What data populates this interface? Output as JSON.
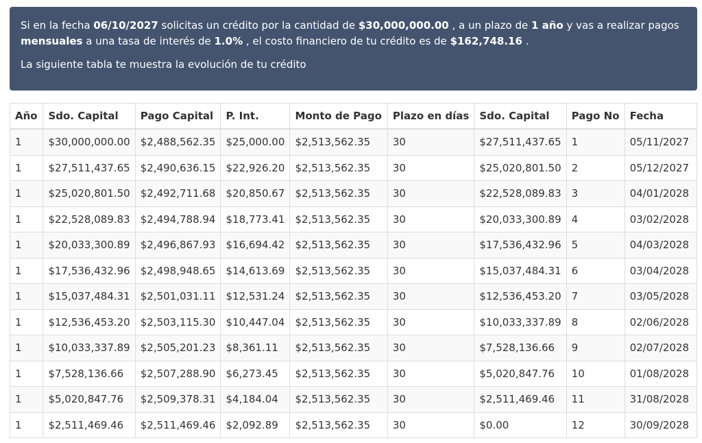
{
  "summary": {
    "t1": "Si en la fecha ",
    "date": "06/10/2027",
    "t2": " solicitas un crédito por la cantidad de ",
    "amount": "$30,000,000.00",
    "t3": " , a un plazo de ",
    "term": "1 año",
    "t4": " y vas a realizar pagos ",
    "frequency": "mensuales",
    "t5": " a una tasa de interés de ",
    "rate": "1.0%",
    "t6": " , el costo financiero de tu crédito es de ",
    "cost": "$162,748.16",
    "t7": " .",
    "note": "La siguiente tabla te muestra la evolución de tu crédito"
  },
  "table": {
    "headers": [
      "Año",
      "Sdo. Capital",
      "Pago Capital",
      "P. Int.",
      "Monto de Pago",
      "Plazo en días",
      "Sdo. Capital",
      "Pago No",
      "Fecha"
    ],
    "rows": [
      [
        "1",
        "$30,000,000.00",
        "$2,488,562.35",
        "$25,000.00",
        "$2,513,562.35",
        "30",
        "$27,511,437.65",
        "1",
        "05/11/2027"
      ],
      [
        "1",
        "$27,511,437.65",
        "$2,490,636.15",
        "$22,926.20",
        "$2,513,562.35",
        "30",
        "$25,020,801.50",
        "2",
        "05/12/2027"
      ],
      [
        "1",
        "$25,020,801.50",
        "$2,492,711.68",
        "$20,850.67",
        "$2,513,562.35",
        "30",
        "$22,528,089.83",
        "3",
        "04/01/2028"
      ],
      [
        "1",
        "$22,528,089.83",
        "$2,494,788.94",
        "$18,773.41",
        "$2,513,562.35",
        "30",
        "$20,033,300.89",
        "4",
        "03/02/2028"
      ],
      [
        "1",
        "$20,033,300.89",
        "$2,496,867.93",
        "$16,694.42",
        "$2,513,562.35",
        "30",
        "$17,536,432.96",
        "5",
        "04/03/2028"
      ],
      [
        "1",
        "$17,536,432.96",
        "$2,498,948.65",
        "$14,613.69",
        "$2,513,562.35",
        "30",
        "$15,037,484.31",
        "6",
        "03/04/2028"
      ],
      [
        "1",
        "$15,037,484.31",
        "$2,501,031.11",
        "$12,531.24",
        "$2,513,562.35",
        "30",
        "$12,536,453.20",
        "7",
        "03/05/2028"
      ],
      [
        "1",
        "$12,536,453.20",
        "$2,503,115.30",
        "$10,447.04",
        "$2,513,562.35",
        "30",
        "$10,033,337.89",
        "8",
        "02/06/2028"
      ],
      [
        "1",
        "$10,033,337.89",
        "$2,505,201.23",
        "$8,361.11",
        "$2,513,562.35",
        "30",
        "$7,528,136.66",
        "9",
        "02/07/2028"
      ],
      [
        "1",
        "$7,528,136.66",
        "$2,507,288.90",
        "$6,273.45",
        "$2,513,562.35",
        "30",
        "$5,020,847.76",
        "10",
        "01/08/2028"
      ],
      [
        "1",
        "$5,020,847.76",
        "$2,509,378.31",
        "$4,184.04",
        "$2,513,562.35",
        "30",
        "$2,511,469.46",
        "11",
        "31/08/2028"
      ],
      [
        "1",
        "$2,511,469.46",
        "$2,511,469.46",
        "$2,092.89",
        "$2,513,562.35",
        "30",
        "$0.00",
        "12",
        "30/09/2028"
      ]
    ]
  },
  "colors": {
    "summary_background": "#44546f",
    "summary_text": "#ffffff",
    "table_text": "#333333",
    "table_border": "#dddddd",
    "stripe": "#f9f9f9"
  }
}
